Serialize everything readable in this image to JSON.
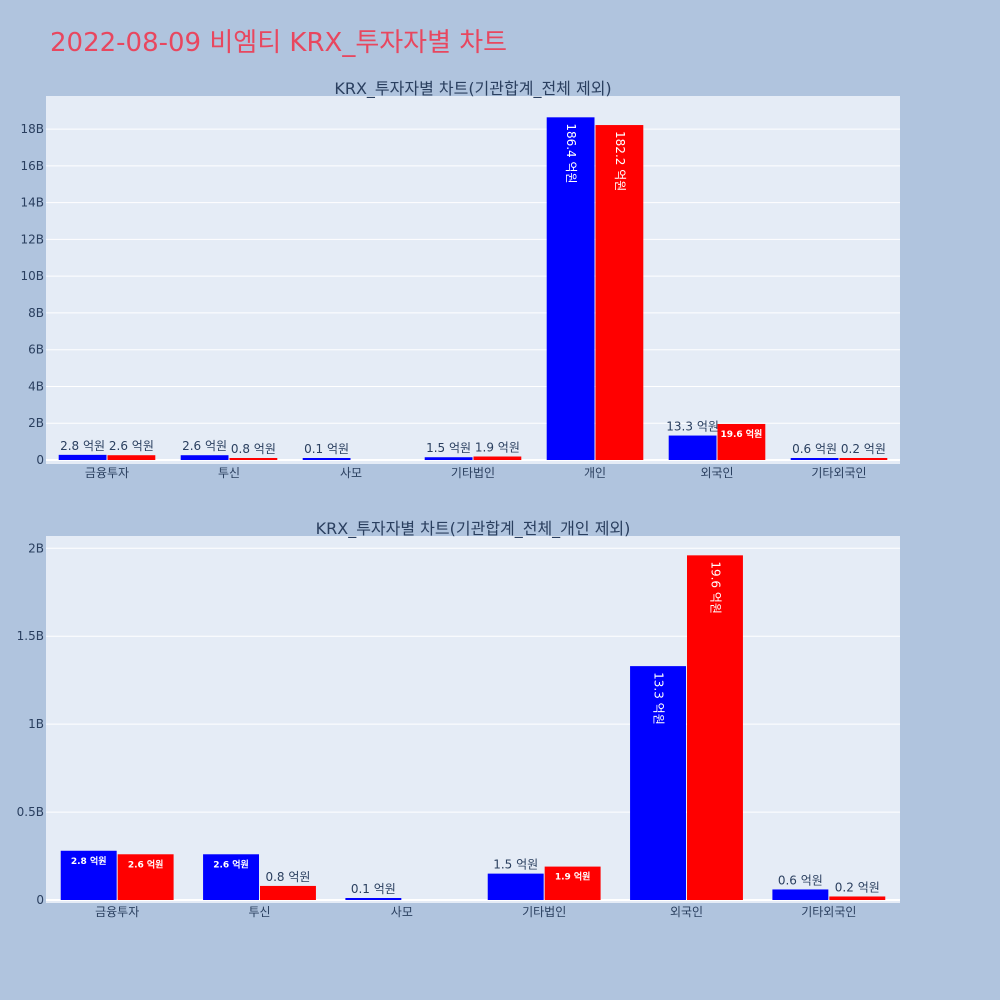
{
  "page_title": "2022-08-09 비엠티 KRX_투자자별 차트",
  "colors": {
    "background": "#b0c4de",
    "plot_background": "#e5ecf6",
    "buy": "#0000ff",
    "sell": "#ff0000",
    "title": "#e8475f"
  },
  "chart_data": [
    {
      "type": "bar",
      "title": "KRX_투자자별 차트(기관합계_전체 제외)",
      "categories": [
        "금융투자",
        "투신",
        "사모",
        "기타법인",
        "개인",
        "외국인",
        "기타외국인"
      ],
      "series": [
        {
          "color": "#0000ff",
          "values": [
            280000000,
            260000000,
            10000000,
            150000000,
            18640000000,
            1330000000,
            60000000
          ],
          "labels": [
            "2.8 억원",
            "2.6 억원",
            "0.1 억원",
            "1.5 억원",
            "186.4 억원",
            "13.3 억원",
            "0.6 억원"
          ]
        },
        {
          "color": "#ff0000",
          "values": [
            260000000,
            80000000,
            0,
            190000000,
            18220000000,
            1960000000,
            20000000
          ],
          "labels": [
            "2.6 억원",
            "0.8 억원",
            "",
            "1.9 억원",
            "182.2 억원",
            "19.6 억원",
            "0.2 억원"
          ]
        }
      ],
      "ylim": [
        0,
        19800000000
      ],
      "yticks": [
        0,
        2000000000,
        4000000000,
        6000000000,
        8000000000,
        10000000000,
        12000000000,
        14000000000,
        16000000000,
        18000000000
      ],
      "ytick_labels": [
        "0",
        "2B",
        "4B",
        "6B",
        "8B",
        "10B",
        "12B",
        "14B",
        "16B",
        "18B"
      ],
      "grid": true
    },
    {
      "type": "bar",
      "title": "KRX_투자자별 차트(기관합계_전체_개인 제외)",
      "categories": [
        "금융투자",
        "투신",
        "사모",
        "기타법인",
        "외국인",
        "기타외국인"
      ],
      "series": [
        {
          "color": "#0000ff",
          "values": [
            280000000,
            260000000,
            10000000,
            150000000,
            1330000000,
            60000000
          ],
          "labels": [
            "2.8 억원",
            "2.6 억원",
            "0.1 억원",
            "1.5 억원",
            "13.3 억원",
            "0.6 억원"
          ]
        },
        {
          "color": "#ff0000",
          "values": [
            260000000,
            80000000,
            0,
            190000000,
            1960000000,
            20000000
          ],
          "labels": [
            "2.6 억원",
            "0.8 억원",
            "",
            "1.9 억원",
            "19.6 억원",
            "0.2 억원"
          ]
        }
      ],
      "ylim": [
        0,
        2070000000
      ],
      "yticks": [
        0,
        500000000,
        1000000000,
        1500000000,
        2000000000
      ],
      "ytick_labels": [
        "0",
        "0.5B",
        "1B",
        "1.5B",
        "2B"
      ],
      "grid": true
    }
  ]
}
